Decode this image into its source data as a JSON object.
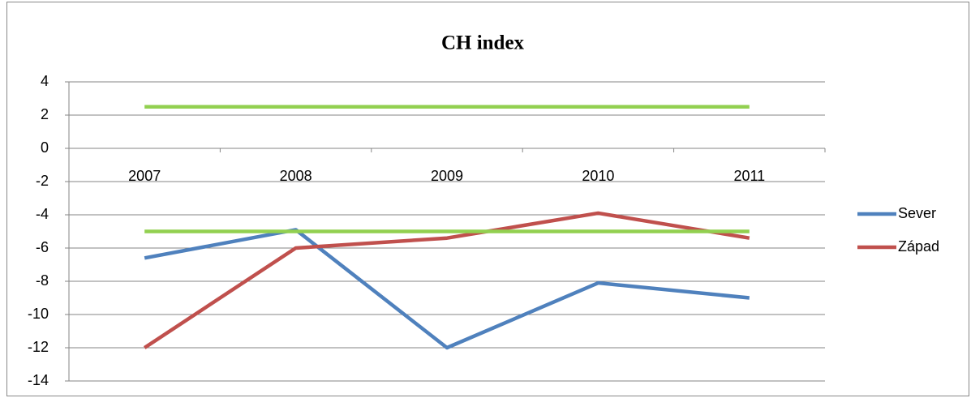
{
  "chart_data": {
    "type": "line",
    "title": "CH index",
    "categories": [
      "2007",
      "2008",
      "2009",
      "2010",
      "2011"
    ],
    "series": [
      {
        "name": "Sever",
        "color": "#4f81bd",
        "values": [
          -6.6,
          -4.9,
          -12,
          -8.1,
          -9
        ]
      },
      {
        "name": "Západ",
        "color": "#c0504d",
        "values": [
          -12,
          -6,
          -5.4,
          -3.9,
          -5.4
        ]
      },
      {
        "color": "#92d050",
        "values": [
          2.5,
          2.5,
          2.5,
          2.5,
          2.5
        ]
      },
      {
        "color": "#92d050",
        "values": [
          -5,
          -5,
          -5,
          -5,
          -5
        ]
      }
    ],
    "ylim": [
      -14,
      4
    ],
    "yticks": [
      4,
      2,
      0,
      -2,
      -4,
      -6,
      -8,
      -10,
      -12,
      -14
    ],
    "grid": true,
    "legend": "right"
  }
}
